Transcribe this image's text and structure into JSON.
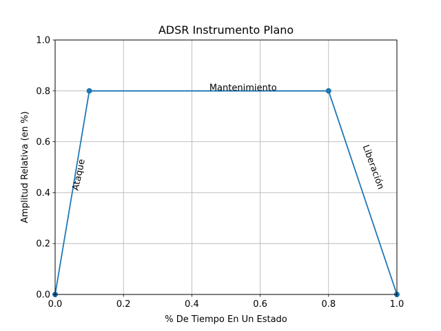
{
  "chart_data": {
    "type": "line",
    "title": "ADSR Instrumento Plano",
    "xlabel": "% De Tiempo En Un Estado",
    "ylabel": "Amplitud Relativa (en %)",
    "xlim": [
      0,
      1
    ],
    "ylim": [
      0,
      1
    ],
    "x_ticks": [
      "0.0",
      "0.2",
      "0.4",
      "0.6",
      "0.8",
      "1.0"
    ],
    "y_ticks": [
      "0.0",
      "0.2",
      "0.4",
      "0.6",
      "0.8",
      "1.0"
    ],
    "grid": true,
    "series": [
      {
        "color": "#1f77b4",
        "x": [
          0.0,
          0.1,
          0.8,
          1.0
        ],
        "y": [
          0.0,
          0.8,
          0.8,
          0.0
        ]
      }
    ],
    "annotations": [
      {
        "text": "Ataque",
        "x": 0.07,
        "y": 0.47,
        "rotation": -78
      },
      {
        "text": "Mantenimiento",
        "x": 0.55,
        "y": 0.81,
        "rotation": 0
      },
      {
        "text": "Liberación",
        "x": 0.93,
        "y": 0.5,
        "rotation": 70
      }
    ]
  }
}
